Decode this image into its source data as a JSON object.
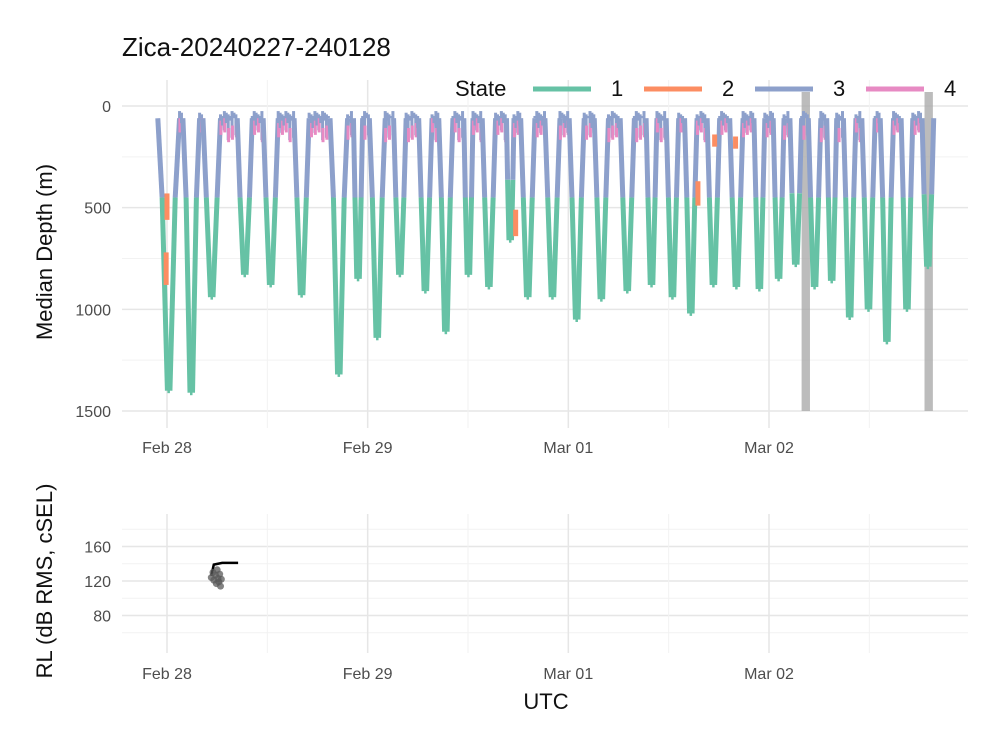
{
  "chart_data": [
    {
      "type": "line",
      "title": "Zica-20240227-240128",
      "ylabel": "Median Depth (m)",
      "xlabel": "",
      "y_reversed": true,
      "ylim": [
        0,
        1500
      ],
      "y_ticks": [
        0,
        500,
        1000,
        1500
      ],
      "x_ticks": [
        {
          "label": "Feb 28",
          "hours": 0
        },
        {
          "label": "Feb 29",
          "hours": 24
        },
        {
          "label": "Mar 01",
          "hours": 48
        },
        {
          "label": "Mar 02",
          "hours": 72
        }
      ],
      "grid": true,
      "legend": {
        "title": "State",
        "placement": "top-right",
        "entries": [
          {
            "label": "1",
            "color": "#66c2a5"
          },
          {
            "label": "2",
            "color": "#fc8d62"
          },
          {
            "label": "3",
            "color": "#8da0cb"
          },
          {
            "label": "4",
            "color": "#e78ac3"
          }
        ]
      },
      "shaded_periods_hours": [
        [
          75.9,
          76.9
        ],
        [
          90.6,
          91.6
        ]
      ],
      "dives": [
        {
          "start": -1.1,
          "max": 1400,
          "end": 1.5
        },
        {
          "start": 1.9,
          "max": 1410,
          "end": 3.9
        },
        {
          "start": 4.3,
          "max": 940,
          "end": 6.4
        },
        {
          "start": 8.4,
          "max": 830,
          "end": 10.2
        },
        {
          "start": 11.5,
          "max": 880,
          "end": 13.3
        },
        {
          "start": 15.2,
          "max": 930,
          "end": 17.0
        },
        {
          "start": 19.5,
          "max": 1320,
          "end": 21.6
        },
        {
          "start": 22.3,
          "max": 850,
          "end": 23.4
        },
        {
          "start": 24.2,
          "max": 1140,
          "end": 26.1
        },
        {
          "start": 27.1,
          "max": 830,
          "end": 28.6
        },
        {
          "start": 30.1,
          "max": 910,
          "end": 31.7
        },
        {
          "start": 32.5,
          "max": 1110,
          "end": 34.2
        },
        {
          "start": 35.5,
          "max": 830,
          "end": 36.6
        },
        {
          "start": 37.7,
          "max": 890,
          "end": 39.3
        },
        {
          "start": 40.6,
          "max": 660,
          "end": 41.5
        },
        {
          "start": 42.3,
          "max": 940,
          "end": 44.0
        },
        {
          "start": 45.2,
          "max": 940,
          "end": 47.0
        },
        {
          "start": 48.1,
          "max": 1050,
          "end": 49.9
        },
        {
          "start": 51.1,
          "max": 950,
          "end": 52.8
        },
        {
          "start": 54.2,
          "max": 910,
          "end": 55.9
        },
        {
          "start": 57.3,
          "max": 880,
          "end": 58.6
        },
        {
          "start": 59.7,
          "max": 940,
          "end": 61.2
        },
        {
          "start": 61.9,
          "max": 1020,
          "end": 63.4
        },
        {
          "start": 64.6,
          "max": 880,
          "end": 66.1
        },
        {
          "start": 67.3,
          "max": 890,
          "end": 68.9
        },
        {
          "start": 70.2,
          "max": 900,
          "end": 71.5
        },
        {
          "start": 72.5,
          "max": 850,
          "end": 73.8
        },
        {
          "start": 74.5,
          "max": 780,
          "end": 75.9
        },
        {
          "start": 76.7,
          "max": 890,
          "end": 78.2
        },
        {
          "start": 78.9,
          "max": 860,
          "end": 80.1
        },
        {
          "start": 80.9,
          "max": 1040,
          "end": 82.4
        },
        {
          "start": 83.1,
          "max": 1000,
          "end": 84.7
        },
        {
          "start": 85.3,
          "max": 1160,
          "end": 86.9
        },
        {
          "start": 87.8,
          "max": 1000,
          "end": 89.2
        },
        {
          "start": 90.3,
          "max": 790,
          "end": 91.7
        }
      ],
      "orange_segments": [
        {
          "hour": -0.1,
          "from": 720,
          "to": 880
        },
        {
          "hour": 0.0,
          "from": 430,
          "to": 560
        },
        {
          "hour": 41.7,
          "from": 510,
          "to": 640
        },
        {
          "hour": 63.5,
          "from": 370,
          "to": 490
        },
        {
          "hour": 65.5,
          "from": 140,
          "to": 200
        },
        {
          "hour": 68.0,
          "from": 150,
          "to": 210
        }
      ]
    },
    {
      "type": "scatter",
      "ylabel": "RL (dB RMS, cSEL)",
      "xlabel": "UTC",
      "ylim": [
        55,
        185
      ],
      "y_ticks": [
        80,
        120,
        160
      ],
      "x_ticks": [
        {
          "label": "Feb 28",
          "hours": 0
        },
        {
          "label": "Feb 29",
          "hours": 24
        },
        {
          "label": "Mar 01",
          "hours": 48
        },
        {
          "label": "Mar 02",
          "hours": 72
        }
      ],
      "grid": true,
      "points": [
        {
          "x": 5.3,
          "y": 124
        },
        {
          "x": 5.5,
          "y": 130
        },
        {
          "x": 5.6,
          "y": 121
        },
        {
          "x": 5.8,
          "y": 127
        },
        {
          "x": 5.9,
          "y": 117
        },
        {
          "x": 6.0,
          "y": 133
        },
        {
          "x": 6.1,
          "y": 123
        },
        {
          "x": 6.2,
          "y": 119
        },
        {
          "x": 6.3,
          "y": 128
        },
        {
          "x": 6.4,
          "y": 114
        },
        {
          "x": 6.5,
          "y": 122
        }
      ],
      "line": [
        {
          "x": 5.3,
          "y": 126
        },
        {
          "x": 5.6,
          "y": 139
        },
        {
          "x": 6.6,
          "y": 141
        },
        {
          "x": 8.5,
          "y": 141
        }
      ]
    }
  ]
}
